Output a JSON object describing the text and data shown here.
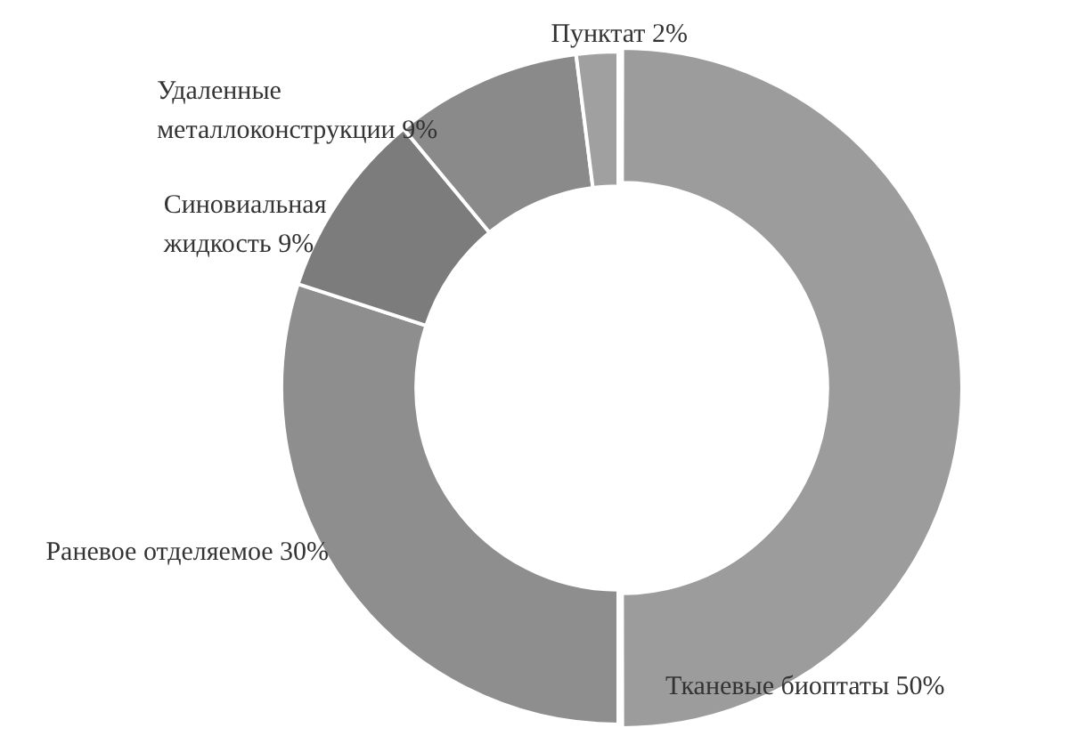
{
  "chart_data": {
    "type": "donut",
    "categories": [
      "Тканевые биоптаты",
      "Раневое отделяемое",
      "Синовиальная жидкость",
      "Удаленные металлоконструкции",
      "Пунктат"
    ],
    "values": [
      50,
      30,
      9,
      9,
      2
    ],
    "value_labels": [
      "50%",
      "30%",
      "9%",
      "9%",
      "2%"
    ],
    "colors": [
      "#9c9c9c",
      "#8e8e8e",
      "#7c7c7c",
      "#8a8a8a",
      "#a0a0a0"
    ],
    "legend": false
  }
}
